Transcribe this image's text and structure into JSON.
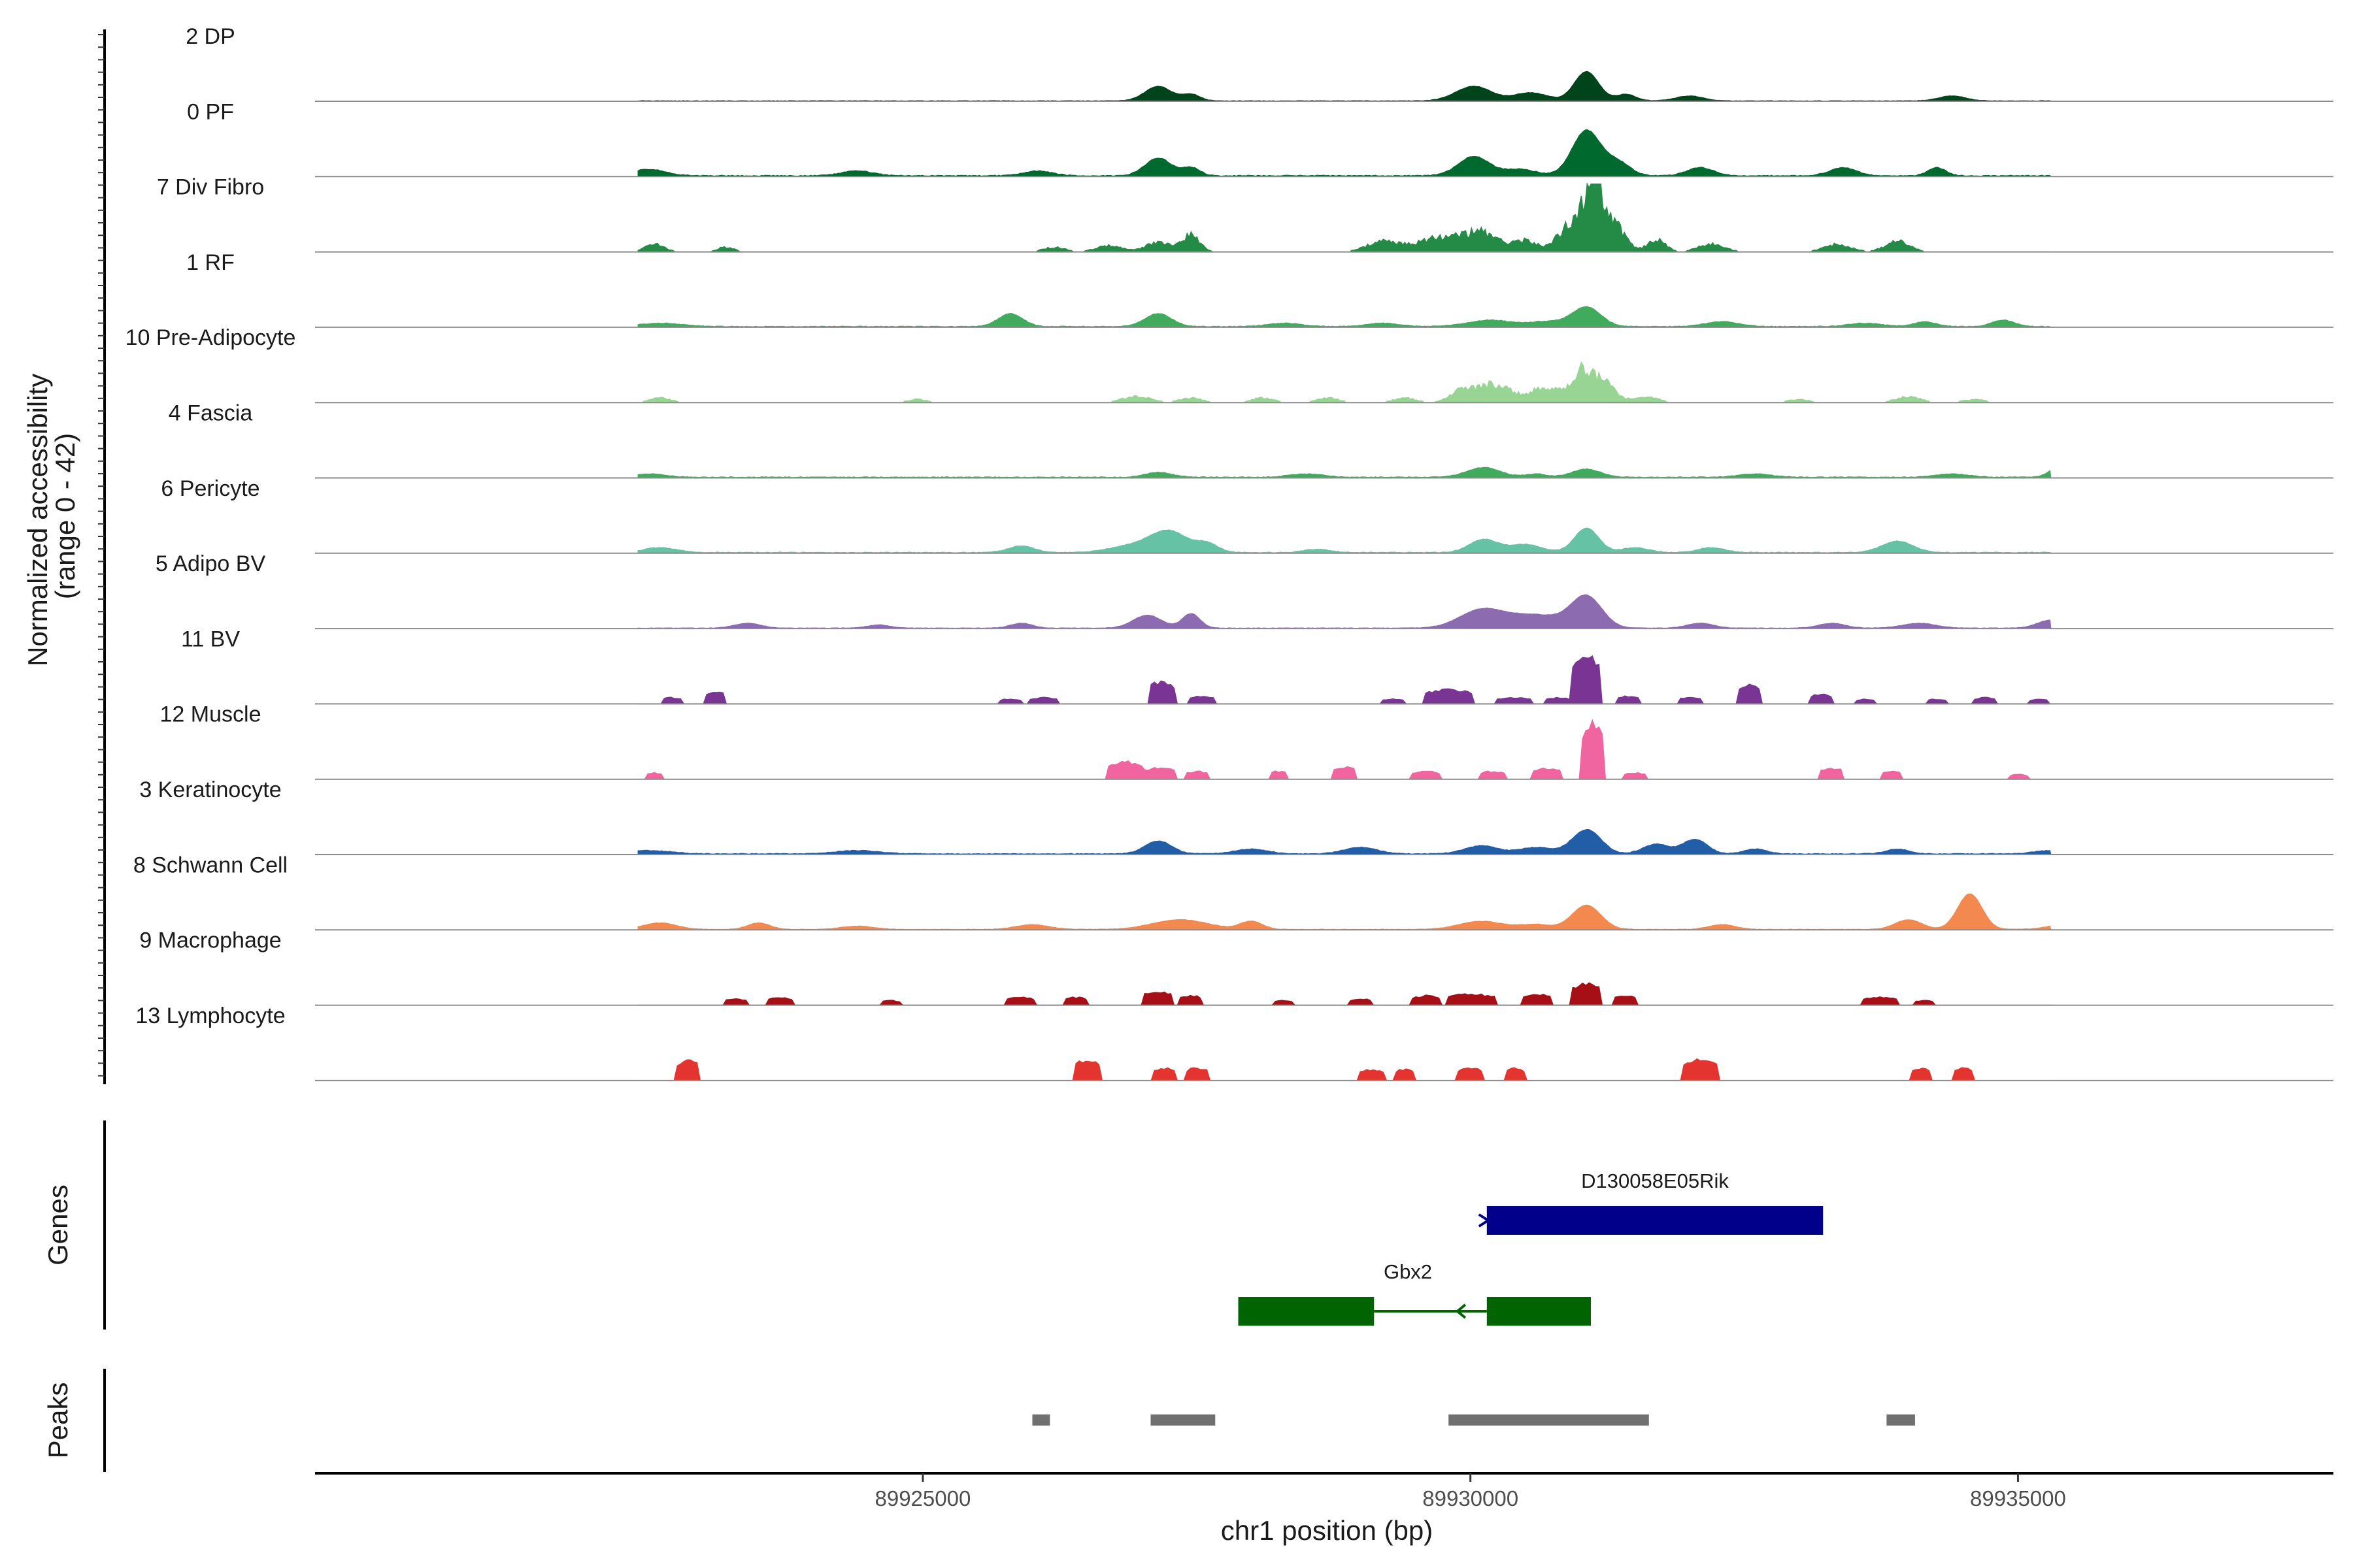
{
  "chart_data": {
    "type": "area",
    "title": "",
    "xlabel": "chr1 position (bp)",
    "ylabel_line1": "Normalized accessibility",
    "ylabel_line2": "(range 0 - 42)",
    "ylim": [
      0,
      42
    ],
    "xlim": [
      89919450,
      89937880
    ],
    "data_start": 89922400,
    "data_end": 89935300,
    "x_ticks": [
      89925000,
      89930000,
      89935000
    ],
    "x_tick_labels": [
      "89925000",
      "89930000",
      "89935000"
    ],
    "tracks": [
      {
        "name": "2 DP",
        "color": "#00441b",
        "type": "smooth",
        "base": 0.3,
        "peaks": [
          [
            89927150,
            9,
            120
          ],
          [
            89927450,
            4,
            80
          ],
          [
            89930030,
            9,
            160
          ],
          [
            89930550,
            5,
            150
          ],
          [
            89931060,
            18,
            110
          ],
          [
            89931420,
            4,
            90
          ],
          [
            89932000,
            3,
            120
          ],
          [
            89934400,
            3,
            120
          ]
        ]
      },
      {
        "name": "0 PF",
        "color": "#00692e",
        "type": "smooth",
        "base": 0.6,
        "peaks": [
          [
            89922500,
            4,
            150
          ],
          [
            89924400,
            3,
            140
          ],
          [
            89926050,
            3,
            130
          ],
          [
            89927150,
            11,
            120
          ],
          [
            89927450,
            5,
            80
          ],
          [
            89930030,
            12,
            140
          ],
          [
            89930450,
            4,
            150
          ],
          [
            89931060,
            28,
            130
          ],
          [
            89931350,
            8,
            110
          ],
          [
            89932100,
            5,
            120
          ],
          [
            89933400,
            5,
            120
          ],
          [
            89934260,
            5,
            80
          ]
        ]
      },
      {
        "name": "7 Div Fibro",
        "color": "#238b45",
        "type": "spiky",
        "base": 0.5,
        "peaks": [
          [
            89922550,
            5,
            90
          ],
          [
            89923200,
            3,
            80
          ],
          [
            89926200,
            3,
            100
          ],
          [
            89926700,
            4,
            120
          ],
          [
            89927150,
            6,
            120
          ],
          [
            89927450,
            11,
            80
          ],
          [
            89929200,
            7,
            140
          ],
          [
            89929700,
            9,
            200
          ],
          [
            89930100,
            12,
            160
          ],
          [
            89930500,
            7,
            120
          ],
          [
            89930900,
            16,
            110
          ],
          [
            89931120,
            42,
            90
          ],
          [
            89931300,
            18,
            110
          ],
          [
            89931700,
            8,
            80
          ],
          [
            89932200,
            5,
            120
          ],
          [
            89933350,
            5,
            120
          ],
          [
            89933900,
            7,
            110
          ]
        ]
      },
      {
        "name": "1 RF",
        "color": "#41ab5d",
        "type": "smooth",
        "base": 0.5,
        "peaks": [
          [
            89922600,
            2,
            200
          ],
          [
            89925800,
            8,
            110
          ],
          [
            89927150,
            8,
            120
          ],
          [
            89928300,
            2,
            150
          ],
          [
            89929200,
            2,
            150
          ],
          [
            89930180,
            4,
            200
          ],
          [
            89930700,
            3,
            160
          ],
          [
            89931060,
            12,
            130
          ],
          [
            89932300,
            3,
            150
          ],
          [
            89933600,
            2,
            150
          ],
          [
            89934150,
            3,
            100
          ],
          [
            89934860,
            4,
            100
          ]
        ]
      },
      {
        "name": "10 Pre-Adipocyte",
        "color": "#98d594",
        "type": "spiky",
        "base": 0,
        "peaks": [
          [
            89922600,
            3,
            100
          ],
          [
            89924950,
            2,
            90
          ],
          [
            89926950,
            4,
            130
          ],
          [
            89927450,
            3,
            100
          ],
          [
            89928100,
            3,
            100
          ],
          [
            89928700,
            3,
            100
          ],
          [
            89929400,
            3,
            100
          ],
          [
            89929900,
            6,
            100
          ],
          [
            89930200,
            12,
            180
          ],
          [
            89930700,
            10,
            130
          ],
          [
            89931000,
            18,
            90
          ],
          [
            89931200,
            14,
            110
          ],
          [
            89931600,
            4,
            110
          ],
          [
            89933000,
            2,
            100
          ],
          [
            89934000,
            4,
            110
          ],
          [
            89934600,
            2,
            100
          ],
          [
            89935700,
            3,
            130
          ],
          [
            89936200,
            3,
            100
          ],
          [
            89937200,
            3,
            100
          ]
        ]
      },
      {
        "name": "4 Fascia",
        "color": "#41ab5d",
        "type": "smooth",
        "base": 0.5,
        "peaks": [
          [
            89922500,
            2,
            150
          ],
          [
            89927150,
            3,
            120
          ],
          [
            89928500,
            2,
            150
          ],
          [
            89930120,
            6,
            150
          ],
          [
            89930600,
            2,
            100
          ],
          [
            89931060,
            5,
            130
          ],
          [
            89932600,
            2,
            150
          ],
          [
            89934400,
            2,
            150
          ],
          [
            89935420,
            9,
            100
          ],
          [
            89936500,
            3,
            100
          ]
        ]
      },
      {
        "name": "6 Pericyte",
        "color": "#66c2a5",
        "type": "smooth",
        "base": 0.5,
        "peaks": [
          [
            89922600,
            3,
            150
          ],
          [
            89925900,
            4,
            120
          ],
          [
            89926900,
            4,
            200
          ],
          [
            89927250,
            13,
            170
          ],
          [
            89927600,
            5,
            100
          ],
          [
            89928600,
            2,
            120
          ],
          [
            89930120,
            8,
            130
          ],
          [
            89930500,
            5,
            150
          ],
          [
            89931060,
            15,
            110
          ],
          [
            89931500,
            3,
            120
          ],
          [
            89932200,
            3,
            120
          ],
          [
            89933900,
            7,
            140
          ],
          [
            89935700,
            3,
            120
          ]
        ]
      },
      {
        "name": "5 Adipo BV",
        "color": "#8c6bb1",
        "type": "smooth",
        "base": 0.3,
        "peaks": [
          [
            89923400,
            3,
            120
          ],
          [
            89924600,
            2,
            100
          ],
          [
            89925900,
            3,
            100
          ],
          [
            89927050,
            8,
            130
          ],
          [
            89927450,
            9,
            80
          ],
          [
            89930100,
            11,
            200
          ],
          [
            89930600,
            8,
            250
          ],
          [
            89931060,
            19,
            140
          ],
          [
            89932100,
            3,
            120
          ],
          [
            89933300,
            3,
            120
          ],
          [
            89934100,
            3,
            150
          ],
          [
            89935300,
            5,
            120
          ],
          [
            89936300,
            3,
            120
          ]
        ]
      },
      {
        "name": "11 BV",
        "color": "#7a3594",
        "type": "blocky",
        "base": 0,
        "peaks": [
          [
            89922700,
            4,
            80
          ],
          [
            89923100,
            8,
            90
          ],
          [
            89925800,
            3,
            100
          ],
          [
            89926100,
            4,
            110
          ],
          [
            89927180,
            14,
            110
          ],
          [
            89927550,
            5,
            100
          ],
          [
            89929300,
            3,
            100
          ],
          [
            89929800,
            9,
            200
          ],
          [
            89930400,
            4,
            150
          ],
          [
            89930800,
            4,
            100
          ],
          [
            89931060,
            30,
            130
          ],
          [
            89931450,
            5,
            100
          ],
          [
            89932000,
            4,
            100
          ],
          [
            89932540,
            12,
            100
          ],
          [
            89933200,
            6,
            90
          ],
          [
            89933600,
            3,
            80
          ],
          [
            89934250,
            3,
            80
          ],
          [
            89934700,
            4,
            100
          ],
          [
            89935200,
            3,
            80
          ],
          [
            89935900,
            4,
            100
          ],
          [
            89936600,
            6,
            80
          ],
          [
            89937800,
            1,
            40
          ]
        ]
      },
      {
        "name": "12 Muscle",
        "color": "#f064a0",
        "type": "blocky",
        "base": 0,
        "peaks": [
          [
            89922550,
            4,
            70
          ],
          [
            89926850,
            11,
            150
          ],
          [
            89927150,
            7,
            150
          ],
          [
            89927500,
            5,
            100
          ],
          [
            89928250,
            5,
            80
          ],
          [
            89928850,
            8,
            100
          ],
          [
            89929600,
            5,
            120
          ],
          [
            89930200,
            5,
            100
          ],
          [
            89930700,
            7,
            120
          ],
          [
            89931120,
            36,
            100
          ],
          [
            89931500,
            4,
            100
          ],
          [
            89933300,
            7,
            100
          ],
          [
            89933850,
            5,
            80
          ],
          [
            89935000,
            3,
            80
          ],
          [
            89936700,
            3,
            80
          ],
          [
            89937300,
            3,
            80
          ]
        ]
      },
      {
        "name": "3 Keratinocyte",
        "color": "#225ea8",
        "type": "smooth",
        "base": 0.5,
        "peaks": [
          [
            89922500,
            2,
            200
          ],
          [
            89924400,
            2,
            200
          ],
          [
            89927150,
            8,
            120
          ],
          [
            89928000,
            3,
            150
          ],
          [
            89929000,
            4,
            150
          ],
          [
            89930100,
            5,
            150
          ],
          [
            89930600,
            4,
            150
          ],
          [
            89931060,
            15,
            130
          ],
          [
            89931700,
            6,
            120
          ],
          [
            89932050,
            9,
            110
          ],
          [
            89932600,
            3,
            100
          ],
          [
            89933900,
            3,
            100
          ],
          [
            89935300,
            2,
            150
          ]
        ]
      },
      {
        "name": "8 Schwann Cell",
        "color": "#f3894e",
        "type": "smooth",
        "base": 0.3,
        "peaks": [
          [
            89922600,
            4,
            150
          ],
          [
            89923500,
            4,
            100
          ],
          [
            89924400,
            2,
            150
          ],
          [
            89926000,
            3,
            150
          ],
          [
            89927350,
            6,
            250
          ],
          [
            89928000,
            5,
            100
          ],
          [
            89930100,
            5,
            200
          ],
          [
            89930600,
            3,
            150
          ],
          [
            89931060,
            15,
            130
          ],
          [
            89932300,
            3,
            120
          ],
          [
            89934000,
            6,
            120
          ],
          [
            89934560,
            22,
            110
          ],
          [
            89935600,
            7,
            200
          ],
          [
            89936300,
            3,
            120
          ]
        ]
      },
      {
        "name": "9 Macrophage",
        "color": "#a50f15",
        "type": "blocky",
        "base": 0,
        "peaks": [
          [
            89923300,
            4,
            100
          ],
          [
            89923700,
            5,
            100
          ],
          [
            89924700,
            3,
            80
          ],
          [
            89925900,
            5,
            120
          ],
          [
            89926400,
            5,
            100
          ],
          [
            89927150,
            9,
            120
          ],
          [
            89927450,
            6,
            100
          ],
          [
            89928300,
            3,
            80
          ],
          [
            89929000,
            4,
            100
          ],
          [
            89929600,
            6,
            120
          ],
          [
            89930000,
            7,
            200
          ],
          [
            89930600,
            7,
            120
          ],
          [
            89931060,
            14,
            130
          ],
          [
            89931420,
            6,
            100
          ],
          [
            89933750,
            5,
            150
          ],
          [
            89934150,
            3,
            80
          ],
          [
            89935600,
            5,
            120
          ],
          [
            89936100,
            3,
            80
          ],
          [
            89936800,
            3,
            80
          ],
          [
            89937200,
            3,
            80
          ]
        ]
      },
      {
        "name": "13 Lymphocyte",
        "color": "#e3342f",
        "type": "blocky",
        "base": 0,
        "peaks": [
          [
            89922850,
            13,
            100
          ],
          [
            89926500,
            13,
            110
          ],
          [
            89927200,
            8,
            100
          ],
          [
            89927500,
            8,
            100
          ],
          [
            89929100,
            7,
            100
          ],
          [
            89929400,
            7,
            90
          ],
          [
            89930000,
            8,
            100
          ],
          [
            89930400,
            8,
            80
          ],
          [
            89932100,
            13,
            150
          ],
          [
            89934100,
            8,
            80
          ],
          [
            89934500,
            8,
            80
          ]
        ]
      }
    ],
    "genes": [
      {
        "name": "D130058E05Rik",
        "color": "#00008b",
        "strand": "+",
        "exons": [
          [
            89930150,
            89933220
          ]
        ]
      },
      {
        "name": "Gbx2",
        "color": "#006400",
        "strand": "-",
        "exons": [
          [
            89927880,
            89929120
          ],
          [
            89930150,
            89931100
          ]
        ],
        "intron": [
          89929120,
          89930150
        ]
      }
    ],
    "peaks": [
      [
        89926000,
        89926160
      ],
      [
        89927080,
        89927670
      ],
      [
        89929800,
        89931630
      ],
      [
        89933800,
        89934060
      ]
    ],
    "panel_labels": {
      "genes": "Genes",
      "peaks": "Peaks"
    }
  }
}
